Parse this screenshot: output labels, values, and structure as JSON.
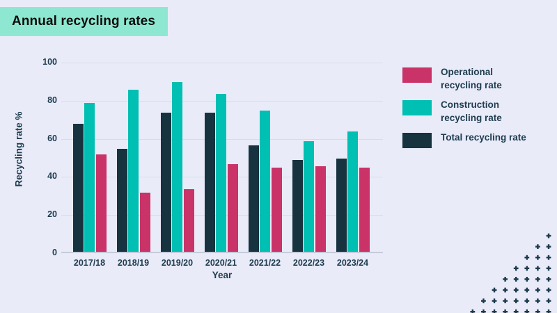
{
  "header": {
    "title": "Annual recycling rates",
    "title_bg": "#8ee8d1"
  },
  "chart_data": {
    "type": "bar",
    "title": "Annual recycling rates",
    "xlabel": "Year",
    "ylabel": "Recycling rate %",
    "ylim": [
      0,
      100
    ],
    "yticks": [
      0,
      20,
      40,
      60,
      80,
      100
    ],
    "grid": true,
    "legend_position": "right",
    "categories": [
      "2017/18",
      "2018/19",
      "2019/20",
      "2020/21",
      "2021/22",
      "2022/23",
      "2023/24"
    ],
    "series": [
      {
        "name": "Total recycling rate",
        "color": "#17333f",
        "values": [
          67,
          54,
          73,
          73,
          56,
          48,
          49
        ]
      },
      {
        "name": "Construction recycling rate",
        "color": "#00bfb3",
        "values": [
          78,
          85,
          89,
          83,
          74,
          58,
          63
        ]
      },
      {
        "name": "Operational recycling rate",
        "color": "#c93367",
        "values": [
          51,
          31,
          33,
          46,
          44,
          45,
          44
        ]
      }
    ]
  },
  "legend": {
    "items": [
      {
        "label": "Operational recycling rate",
        "lines": [
          "Operational",
          "recycling rate"
        ],
        "color": "#c93367"
      },
      {
        "label": "Construction recycling rate",
        "lines": [
          "Construction",
          "recycling rate"
        ],
        "color": "#00bfb3"
      },
      {
        "label": "Total recycling rate",
        "lines": [
          "Total recycling rate"
        ],
        "color": "#17333f"
      }
    ]
  },
  "colors": {
    "background": "#e9ebf8",
    "axis_text": "#1e3c4e",
    "gridline": "#d8dce9",
    "baseline": "#c6cbdb",
    "dots": "#1d3a4d"
  }
}
